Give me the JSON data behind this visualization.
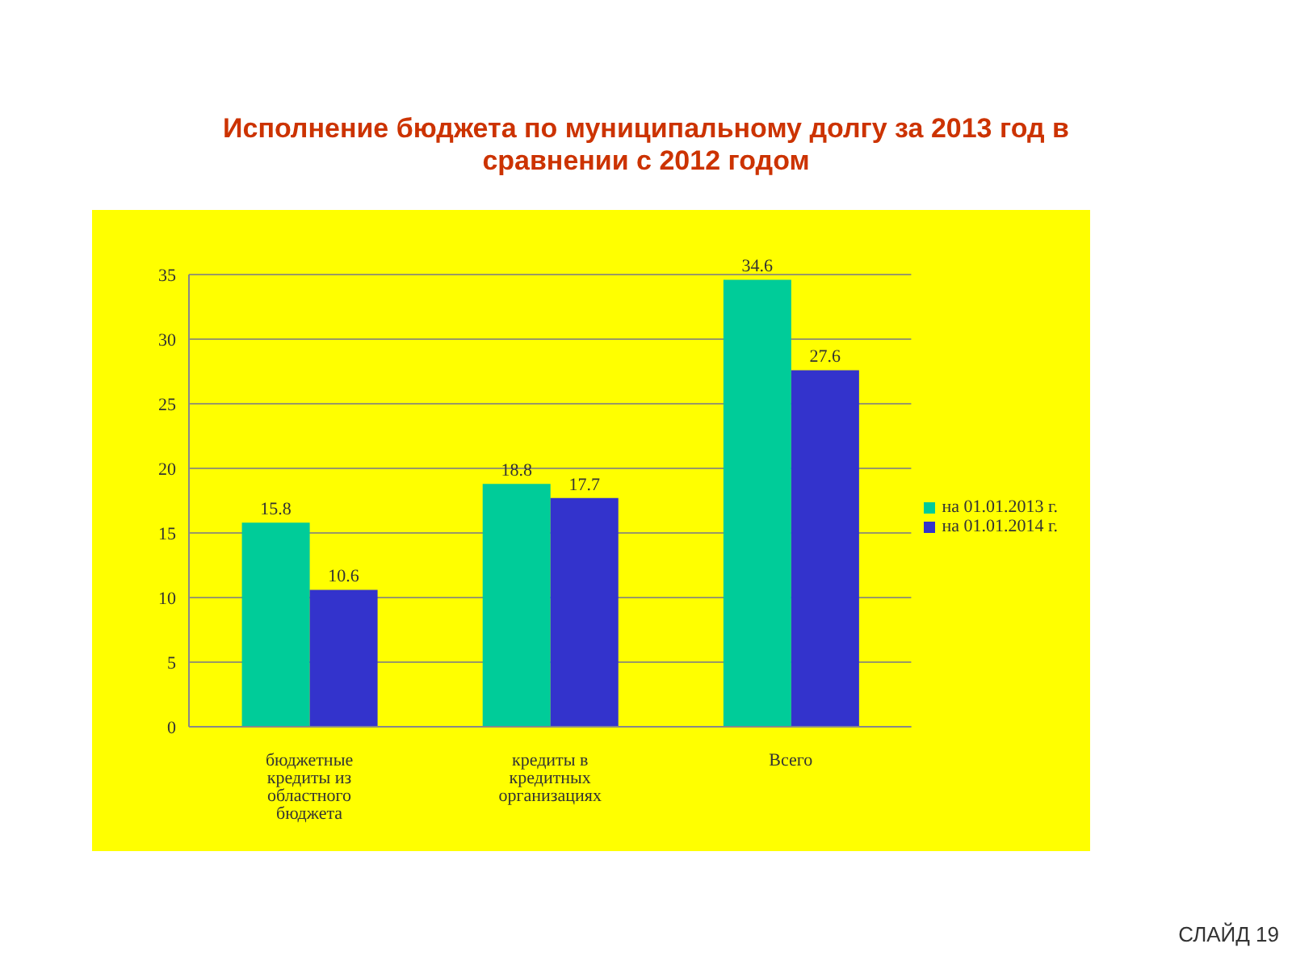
{
  "chart_data": {
    "type": "bar",
    "title": "Исполнение бюджета по муниципальному долгу за 2013 год в сравнении с 2012 годом",
    "categories": [
      "бюджетные кредиты из областного бюджета",
      "кредиты в кредитных организациях",
      "Всего"
    ],
    "series": [
      {
        "name": "на 01.01.2013 г.",
        "color": "#00cc99",
        "values": [
          15.8,
          18.8,
          34.6
        ]
      },
      {
        "name": "на 01.01.2014 г.",
        "color": "#3333cc",
        "values": [
          10.6,
          17.7,
          27.6
        ]
      }
    ],
    "ylim": [
      0,
      35
    ],
    "yticks": [
      0,
      5,
      10,
      15,
      20,
      25,
      30,
      35
    ],
    "grid": "y",
    "legend": "right",
    "data_labels": true,
    "annotations": [
      "СЛАЙД 19"
    ]
  }
}
